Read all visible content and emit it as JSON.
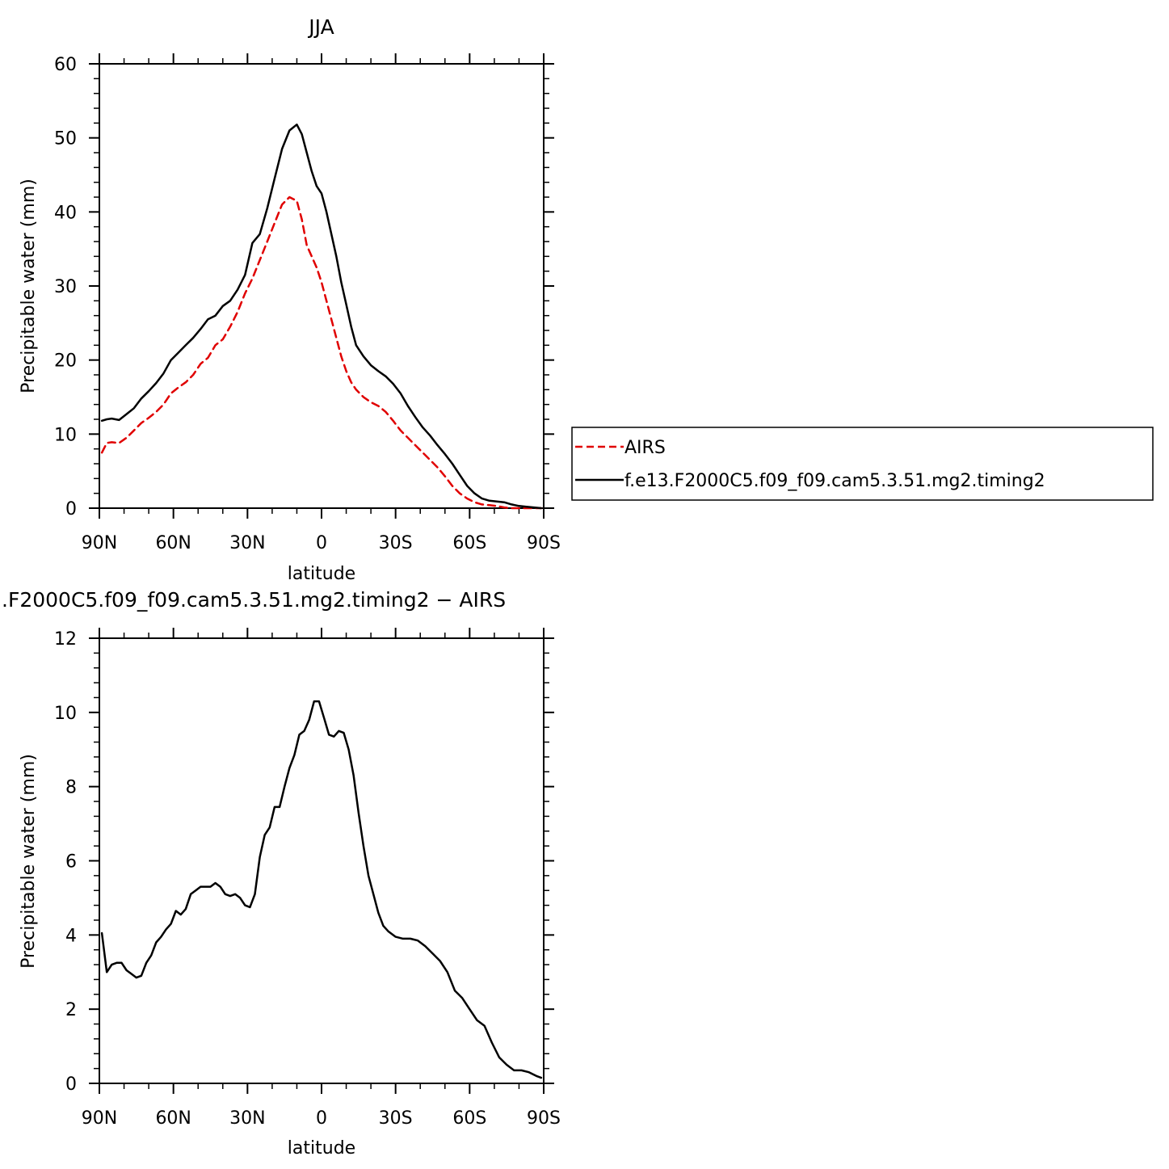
{
  "chart_data": [
    {
      "type": "line",
      "title": "JJA",
      "xlabel": "latitude",
      "ylabel": "Precipitable water (mm)",
      "xlim": [
        90,
        -90
      ],
      "ylim": [
        0,
        60
      ],
      "x_ticks": [
        90,
        60,
        30,
        0,
        -30,
        -60,
        -90
      ],
      "x_tick_labels": [
        "90N",
        "60N",
        "30N",
        "0",
        "30S",
        "60S",
        "90S"
      ],
      "y_ticks": [
        0,
        10,
        20,
        30,
        40,
        50,
        60
      ],
      "y_tick_labels": [
        "0",
        "10",
        "20",
        "30",
        "40",
        "50",
        "60"
      ],
      "grid": false,
      "legend_position": "right",
      "series": [
        {
          "name": "AIRS",
          "color": "#e00000",
          "dash": "dashed",
          "x": [
            89,
            87,
            85,
            82,
            79,
            76,
            73,
            70,
            67,
            64,
            61,
            58,
            55,
            52,
            49,
            46,
            43,
            40,
            37,
            34,
            31,
            28,
            25,
            22,
            19,
            16,
            13,
            10,
            8,
            6,
            4,
            2,
            0,
            -2,
            -4,
            -6,
            -8,
            -10,
            -12,
            -14,
            -17,
            -20,
            -23,
            -26,
            -29,
            -32,
            -35,
            -38,
            -41,
            -44,
            -47,
            -50,
            -53,
            -56,
            -59,
            -62,
            -65,
            -68,
            -71,
            -74,
            -77,
            -80,
            -83,
            -86,
            -89
          ],
          "y": [
            7.5,
            8.8,
            8.9,
            8.8,
            9.5,
            10.5,
            11.5,
            12.2,
            13.0,
            14.0,
            15.5,
            16.3,
            17.0,
            18.0,
            19.5,
            20.3,
            22.0,
            22.8,
            24.5,
            26.5,
            29.0,
            31.0,
            33.5,
            36.0,
            38.5,
            41.0,
            42.0,
            41.5,
            39.0,
            35.5,
            34.0,
            32.5,
            30.5,
            28.0,
            25.5,
            23.0,
            20.5,
            18.5,
            17.0,
            16.0,
            15.0,
            14.3,
            13.8,
            13.0,
            11.8,
            10.5,
            9.5,
            8.5,
            7.5,
            6.5,
            5.5,
            4.3,
            3.0,
            2.0,
            1.3,
            0.8,
            0.5,
            0.4,
            0.3,
            0.1,
            0.0,
            0.0,
            0.0,
            0.0,
            0.0
          ]
        },
        {
          "name": "f.e13.F2000C5.f09_f09.cam5.3.51.mg2.timing2",
          "color": "#000000",
          "dash": "solid",
          "x": [
            89,
            87,
            85,
            82,
            79,
            76,
            73,
            70,
            67,
            64,
            61,
            58,
            55,
            52,
            49,
            46,
            43,
            40,
            37,
            34,
            31,
            28,
            25,
            22,
            19,
            16,
            13,
            10,
            8,
            6,
            4,
            2,
            0,
            -2,
            -4,
            -6,
            -8,
            -10,
            -12,
            -14,
            -17,
            -20,
            -23,
            -26,
            -29,
            -32,
            -35,
            -38,
            -41,
            -44,
            -47,
            -50,
            -53,
            -56,
            -59,
            -62,
            -65,
            -68,
            -71,
            -74,
            -77,
            -80,
            -83,
            -86,
            -89
          ],
          "y": [
            11.8,
            12.0,
            12.1,
            11.9,
            12.7,
            13.5,
            14.8,
            15.8,
            16.9,
            18.2,
            20.0,
            21.0,
            22.0,
            23.0,
            24.2,
            25.5,
            26.0,
            27.3,
            28.0,
            29.5,
            31.5,
            35.8,
            37.0,
            40.5,
            44.5,
            48.5,
            51.0,
            51.8,
            50.5,
            48.0,
            45.5,
            43.5,
            42.5,
            40.0,
            37.0,
            34.0,
            30.5,
            27.5,
            24.5,
            22.0,
            20.5,
            19.3,
            18.5,
            17.8,
            16.8,
            15.5,
            13.8,
            12.3,
            10.9,
            9.8,
            8.5,
            7.3,
            6.0,
            4.5,
            3.0,
            2.0,
            1.3,
            1.0,
            0.9,
            0.8,
            0.5,
            0.3,
            0.2,
            0.1,
            0.0
          ]
        }
      ]
    },
    {
      "type": "line",
      "title": ".F2000C5.f09_f09.cam5.3.51.mg2.timing2 − AIRS",
      "xlabel": "latitude",
      "ylabel": "Precipitable water (mm)",
      "xlim": [
        90,
        -90
      ],
      "ylim": [
        0,
        12
      ],
      "x_ticks": [
        90,
        60,
        30,
        0,
        -30,
        -60,
        -90
      ],
      "x_tick_labels": [
        "90N",
        "60N",
        "30N",
        "0",
        "30S",
        "60S",
        "90S"
      ],
      "y_ticks": [
        0,
        2,
        4,
        6,
        8,
        10,
        12
      ],
      "y_tick_labels": [
        "0",
        "2",
        "4",
        "6",
        "8",
        "10",
        "12"
      ],
      "grid": false,
      "series": [
        {
          "color": "#000000",
          "dash": "solid",
          "x": [
            89,
            87,
            85,
            83,
            81,
            79,
            77,
            75,
            73,
            71,
            69,
            67,
            65,
            63,
            61,
            59,
            57,
            55,
            53,
            51,
            49,
            47,
            45,
            43,
            41,
            39,
            37,
            35,
            33,
            31,
            29,
            27,
            25,
            23,
            21,
            19,
            17,
            15,
            13,
            11,
            9,
            7,
            5,
            3,
            1,
            -1,
            -3,
            -5,
            -7,
            -9,
            -11,
            -13,
            -15,
            -17,
            -19,
            -21,
            -23,
            -25,
            -27,
            -30,
            -33,
            -36,
            -39,
            -42,
            -45,
            -48,
            -51,
            -54,
            -57,
            -60,
            -63,
            -66,
            -69,
            -72,
            -75,
            -78,
            -81,
            -84,
            -87,
            -89
          ],
          "y": [
            4.05,
            3.0,
            3.2,
            3.25,
            3.25,
            3.05,
            2.95,
            2.85,
            2.9,
            3.25,
            3.45,
            3.8,
            3.95,
            4.15,
            4.3,
            4.65,
            4.55,
            4.7,
            5.1,
            5.2,
            5.3,
            5.3,
            5.3,
            5.4,
            5.3,
            5.1,
            5.05,
            5.1,
            5.0,
            4.8,
            4.75,
            5.1,
            6.1,
            6.7,
            6.9,
            7.45,
            7.45,
            8.0,
            8.5,
            8.85,
            9.4,
            9.5,
            9.8,
            10.3,
            10.3,
            9.85,
            9.4,
            9.35,
            9.5,
            9.45,
            9.0,
            8.3,
            7.3,
            6.4,
            5.6,
            5.1,
            4.6,
            4.25,
            4.1,
            3.95,
            3.9,
            3.9,
            3.85,
            3.7,
            3.5,
            3.3,
            3.0,
            2.5,
            2.3,
            2.0,
            1.7,
            1.55,
            1.1,
            0.7,
            0.5,
            0.35,
            0.35,
            0.3,
            0.2,
            0.15
          ]
        }
      ]
    }
  ]
}
